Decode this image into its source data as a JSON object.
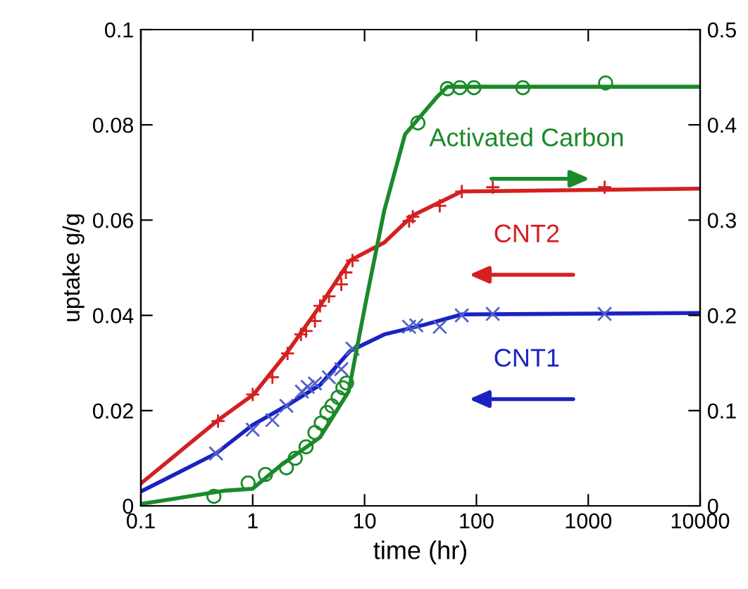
{
  "chart_data": {
    "type": "line",
    "xlabel": "time (hr)",
    "ylabel": "uptake g/g",
    "log": "x",
    "xlim": [
      0.1,
      10000
    ],
    "xticks": [
      0.1,
      1,
      10,
      100,
      1000,
      10000
    ],
    "ylim": [
      0,
      0.1
    ],
    "yticks": [
      0,
      0.02,
      0.04,
      0.06,
      0.08,
      0.1
    ],
    "y2lim": [
      0,
      0.5
    ],
    "y2ticks": [
      0,
      0.1,
      0.2,
      0.3,
      0.4,
      0.5
    ],
    "grid": false,
    "legend": false,
    "series": [
      {
        "name": "Activated Carbon",
        "axis": "y2",
        "color": "#1a8a2a",
        "x": [
          0.1,
          0.57,
          1.0,
          1.8,
          4,
          7.2,
          10.5,
          15,
          23,
          45,
          55,
          10000
        ],
        "values": [
          0.002,
          0.016,
          0.018,
          0.043,
          0.072,
          0.12,
          0.22,
          0.31,
          0.39,
          0.43,
          0.44,
          0.44
        ]
      },
      {
        "type": "scatter",
        "axis": "y2",
        "marker": "circle",
        "color": "#1a8a2a",
        "x": [
          0.45,
          0.91,
          1.3,
          2.0,
          2.4,
          3.0,
          3.6,
          4.1,
          4.6,
          5.1,
          5.8,
          6.4,
          6.9,
          30,
          55,
          71,
          95,
          260,
          1430
        ],
        "values": [
          0.01,
          0.024,
          0.033,
          0.04,
          0.05,
          0.062,
          0.077,
          0.087,
          0.098,
          0.105,
          0.114,
          0.124,
          0.129,
          0.402,
          0.438,
          0.439,
          0.439,
          0.439,
          0.444
        ]
      },
      {
        "name": "CNT2",
        "color": "#d42020",
        "x": [
          0.1,
          0.49,
          1.02,
          2.0,
          4.0,
          7.4,
          15,
          27,
          74,
          10000
        ],
        "values": [
          0.0047,
          0.018,
          0.0234,
          0.032,
          0.042,
          0.0515,
          0.0553,
          0.061,
          0.066,
          0.0666
        ]
      },
      {
        "type": "scatter",
        "marker": "plus",
        "color": "#d42020",
        "x": [
          0.49,
          1.0,
          1.5,
          2.05,
          2.7,
          3.0,
          3.6,
          4.0,
          4.8,
          6.2,
          6.8,
          7.8,
          25,
          27,
          47,
          74,
          140,
          1400
        ],
        "values": [
          0.0178,
          0.0234,
          0.027,
          0.032,
          0.036,
          0.0367,
          0.0388,
          0.042,
          0.044,
          0.0465,
          0.049,
          0.0515,
          0.0598,
          0.0607,
          0.063,
          0.066,
          0.0669,
          0.0669
        ]
      },
      {
        "name": "CNT1",
        "color": "#1a22c0",
        "x": [
          0.1,
          0.47,
          1.0,
          2.0,
          4,
          7.4,
          15,
          34,
          74,
          10000
        ],
        "values": [
          0.003,
          0.011,
          0.017,
          0.021,
          0.0254,
          0.0325,
          0.036,
          0.038,
          0.0402,
          0.0405
        ]
      },
      {
        "type": "scatter",
        "marker": "cross",
        "color": "#5060c8",
        "x": [
          0.47,
          1.0,
          1.5,
          2.0,
          2.75,
          3.1,
          3.6,
          4.8,
          6.2,
          7.8,
          25,
          29,
          47,
          74,
          140,
          1400
        ],
        "values": [
          0.011,
          0.016,
          0.018,
          0.021,
          0.024,
          0.025,
          0.0257,
          0.027,
          0.0287,
          0.033,
          0.0376,
          0.0379,
          0.0376,
          0.04,
          0.0403,
          0.0403
        ]
      }
    ]
  }
}
